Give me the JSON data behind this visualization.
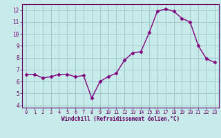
{
  "x": [
    0,
    1,
    2,
    3,
    4,
    5,
    6,
    7,
    8,
    9,
    10,
    11,
    12,
    13,
    14,
    15,
    16,
    17,
    18,
    19,
    20,
    21,
    22,
    23
  ],
  "y": [
    6.6,
    6.6,
    6.3,
    6.4,
    6.6,
    6.6,
    6.4,
    6.5,
    4.6,
    6.0,
    6.4,
    6.7,
    7.8,
    8.4,
    8.5,
    10.1,
    11.9,
    12.1,
    11.9,
    11.3,
    11.0,
    9.0,
    7.9,
    7.6
  ],
  "line_color": "#800080",
  "marker": "D",
  "markersize": 2.5,
  "linewidth": 1.0,
  "ylim": [
    3.8,
    12.5
  ],
  "xlim": [
    -0.5,
    23.5
  ],
  "yticks": [
    4,
    5,
    6,
    7,
    8,
    9,
    10,
    11,
    12
  ],
  "xticks": [
    0,
    1,
    2,
    3,
    4,
    5,
    6,
    7,
    8,
    9,
    10,
    11,
    12,
    13,
    14,
    15,
    16,
    17,
    18,
    19,
    20,
    21,
    22,
    23
  ],
  "xlabel": "Windchill (Refroidissement éolien,°C)",
  "bg_color": "#c8eaea",
  "grid_color": "#a0cccc",
  "line_border_color": "#660066",
  "tick_color": "#660066",
  "label_color": "#660066",
  "spine_color": "#660066"
}
